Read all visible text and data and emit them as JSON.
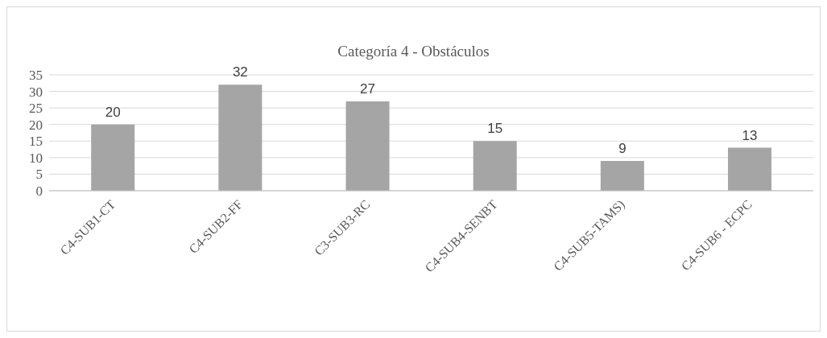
{
  "chart_data": {
    "type": "bar",
    "title": "Categoría 4 - Obstáculos",
    "categories": [
      "C4-SUB1-CT",
      "C4-SUB2-FF",
      "C3-SUB3-RC",
      "C4-SUB4-SENBT",
      "C4-SUB5-TAMS)",
      "C4-SUB6 - ECPC"
    ],
    "values": [
      20,
      32,
      27,
      15,
      9,
      13
    ],
    "color": "#a5a5a5",
    "ylim": [
      0,
      35
    ],
    "yticks": [
      0,
      5,
      10,
      15,
      20,
      25,
      30,
      35
    ],
    "grid": "y",
    "data_labels": true
  }
}
